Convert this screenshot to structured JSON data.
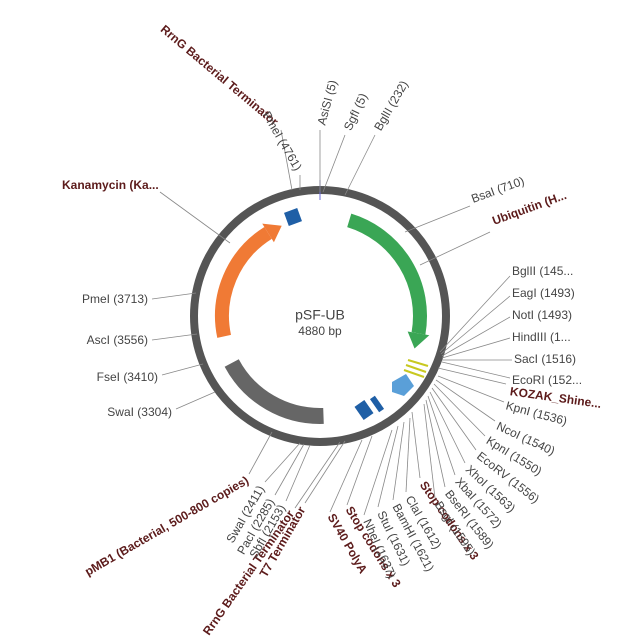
{
  "plasmid": {
    "name": "pSF-UB",
    "size": "4880 bp"
  },
  "features": [
    "RrnG Bacterial Terminator",
    "Kanamycin (Ka...",
    "Ubiquitin (H...",
    "KOZAK_Shine...",
    "Stop codons x 3",
    "SV40 PolyA",
    "Stop codons x 3",
    "T7 Terminator",
    "RrnG Bacterial Terminator",
    "pMB1 (Bacterial, 500-800 copies)"
  ],
  "sites": [
    "PmeI (4761)",
    "AsiSI (5)",
    "SgfI (5)",
    "BglII (232)",
    "BsaI (710)",
    "BglII (145...",
    "EagI (1493)",
    "NotI (1493)",
    "HindIII (1...",
    "SacI (1516)",
    "EcoRI (152...",
    "KpnI (1536)",
    "NcoI (1540)",
    "KpnI (1550)",
    "EcoRV (1556)",
    "XhoI (1563)",
    "XbaI (1572)",
    "BseRI (1589)",
    "BsgI (1595)",
    "ClaI (1612)",
    "BamHI (1621)",
    "StuI (1631)",
    "NheI (1637)",
    "SwaI (2411)",
    "PacI (2285)",
    "SbfI (2153)",
    "PmeI (3713)",
    "AscI (3556)",
    "FseI (3410)",
    "SwaI (3304)"
  ]
}
